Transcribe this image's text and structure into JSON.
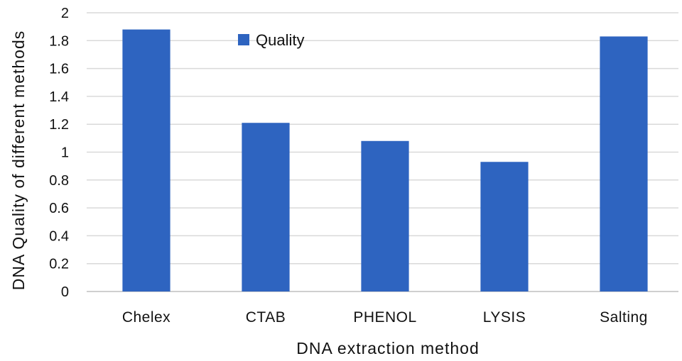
{
  "chart_data": {
    "type": "bar",
    "categories": [
      "Chelex",
      "CTAB",
      "PHENOL",
      "LYSIS",
      "Salting"
    ],
    "series": [
      {
        "name": "Quality",
        "values": [
          1.88,
          1.21,
          1.08,
          0.93,
          1.83
        ]
      }
    ],
    "xlabel": "DNA  extraction  method",
    "ylabel": "DNA Quality  of different  methods",
    "ylim": [
      0,
      2
    ],
    "yticks": [
      "0",
      "0.2",
      "0.4",
      "0.6",
      "0.8",
      "1",
      "1.2",
      "1.4",
      "1.6",
      "1.8",
      "2"
    ],
    "grid": true,
    "legend_position": "top-center",
    "colors": {
      "bar": "#2e64c0",
      "grid": "#d9d9d9",
      "text": "#111111"
    }
  }
}
